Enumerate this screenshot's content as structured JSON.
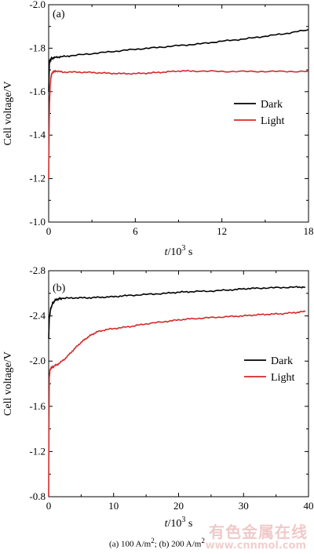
{
  "chart_data": [
    {
      "type": "line",
      "panel_label": "(a)",
      "xlabel_italic": "t",
      "xlabel_rest": "/10",
      "xlabel_sup": "3",
      "xlabel_unit": " s",
      "ylabel": "Cell voltage/V",
      "xlim": [
        0,
        18
      ],
      "ylim": [
        -1.0,
        -2.0
      ],
      "x_ticks": [
        0,
        6,
        12,
        18
      ],
      "x_tick_labels": [
        "0",
        "6",
        "12",
        "18"
      ],
      "y_ticks": [
        -1.0,
        -1.2,
        -1.4,
        -1.6,
        -1.8,
        -2.0
      ],
      "y_tick_labels": [
        "-1.0",
        "-1.2",
        "-1.4",
        "-1.6",
        "-1.8",
        "-2.0"
      ],
      "legend_position": "right-middle",
      "series": [
        {
          "name": "Dark",
          "color": "#000000",
          "x": [
            0,
            0.05,
            0.1,
            0.2,
            0.4,
            0.8,
            1.5,
            3,
            4.5,
            6,
            7.5,
            9,
            10.5,
            12,
            13.5,
            15,
            16.5,
            18
          ],
          "y": [
            -1.6,
            -1.73,
            -1.745,
            -1.752,
            -1.757,
            -1.76,
            -1.765,
            -1.775,
            -1.785,
            -1.795,
            -1.803,
            -1.812,
            -1.82,
            -1.832,
            -1.842,
            -1.855,
            -1.868,
            -1.885
          ]
        },
        {
          "name": "Light",
          "color": "#d42a2a",
          "x": [
            0,
            0.03,
            0.06,
            0.1,
            0.15,
            0.2,
            0.3,
            0.5,
            1,
            2,
            3,
            4,
            5,
            6,
            7,
            8,
            9,
            10,
            12,
            14,
            16,
            18
          ],
          "y": [
            -1.2,
            -1.42,
            -1.55,
            -1.62,
            -1.66,
            -1.68,
            -1.69,
            -1.695,
            -1.69,
            -1.69,
            -1.688,
            -1.685,
            -1.683,
            -1.683,
            -1.686,
            -1.69,
            -1.695,
            -1.695,
            -1.693,
            -1.693,
            -1.693,
            -1.693
          ]
        }
      ]
    },
    {
      "type": "line",
      "panel_label": "(b)",
      "xlabel_italic": "t",
      "xlabel_rest": "/10",
      "xlabel_sup": "3",
      "xlabel_unit": " s",
      "ylabel": "Cell voltage/V",
      "xlim": [
        0,
        40
      ],
      "ylim": [
        -0.8,
        -2.8
      ],
      "x_ticks": [
        0,
        10,
        20,
        30,
        40
      ],
      "x_tick_labels": [
        "0",
        "10",
        "20",
        "30",
        "40"
      ],
      "y_ticks": [
        -0.8,
        -1.2,
        -1.6,
        -2.0,
        -2.4,
        -2.8
      ],
      "y_tick_labels": [
        "-0.8",
        "-1.2",
        "-1.6",
        "-2.0",
        "-2.4",
        "-2.8"
      ],
      "legend_position": "right-middle",
      "series": [
        {
          "name": "Dark",
          "color": "#000000",
          "x": [
            0,
            0.1,
            0.3,
            0.6,
            1,
            1.5,
            2,
            4,
            6,
            8,
            10,
            12,
            15,
            18,
            20,
            22,
            25,
            28,
            30,
            32,
            35,
            38,
            39.5
          ],
          "y": [
            -2.2,
            -2.38,
            -2.46,
            -2.51,
            -2.54,
            -2.55,
            -2.555,
            -2.56,
            -2.56,
            -2.565,
            -2.57,
            -2.58,
            -2.59,
            -2.6,
            -2.61,
            -2.615,
            -2.62,
            -2.63,
            -2.64,
            -2.645,
            -2.65,
            -2.655,
            -2.655
          ]
        },
        {
          "name": "Light",
          "color": "#d42a2a",
          "x": [
            0,
            0.05,
            0.1,
            0.2,
            0.4,
            0.8,
            1.5,
            2.5,
            3.5,
            4.5,
            5.5,
            6.5,
            7.5,
            9,
            11,
            13,
            15,
            18,
            20,
            22,
            25,
            28,
            30,
            32,
            34,
            36,
            38,
            39.5
          ],
          "y": [
            -0.8,
            -1.5,
            -1.85,
            -1.92,
            -1.94,
            -1.955,
            -1.975,
            -2.02,
            -2.08,
            -2.14,
            -2.19,
            -2.23,
            -2.26,
            -2.28,
            -2.295,
            -2.31,
            -2.33,
            -2.35,
            -2.365,
            -2.375,
            -2.385,
            -2.395,
            -2.4,
            -2.41,
            -2.415,
            -2.42,
            -2.43,
            -2.44
          ]
        }
      ]
    }
  ],
  "caption": {
    "text_a": "(a) 100 A/m",
    "sup_a": "2",
    "text_b": "; (b) 200 A/m",
    "sup_b": "2"
  },
  "watermark": {
    "text": "有色金属在线",
    "url_text": "www.cnnmol.com"
  }
}
